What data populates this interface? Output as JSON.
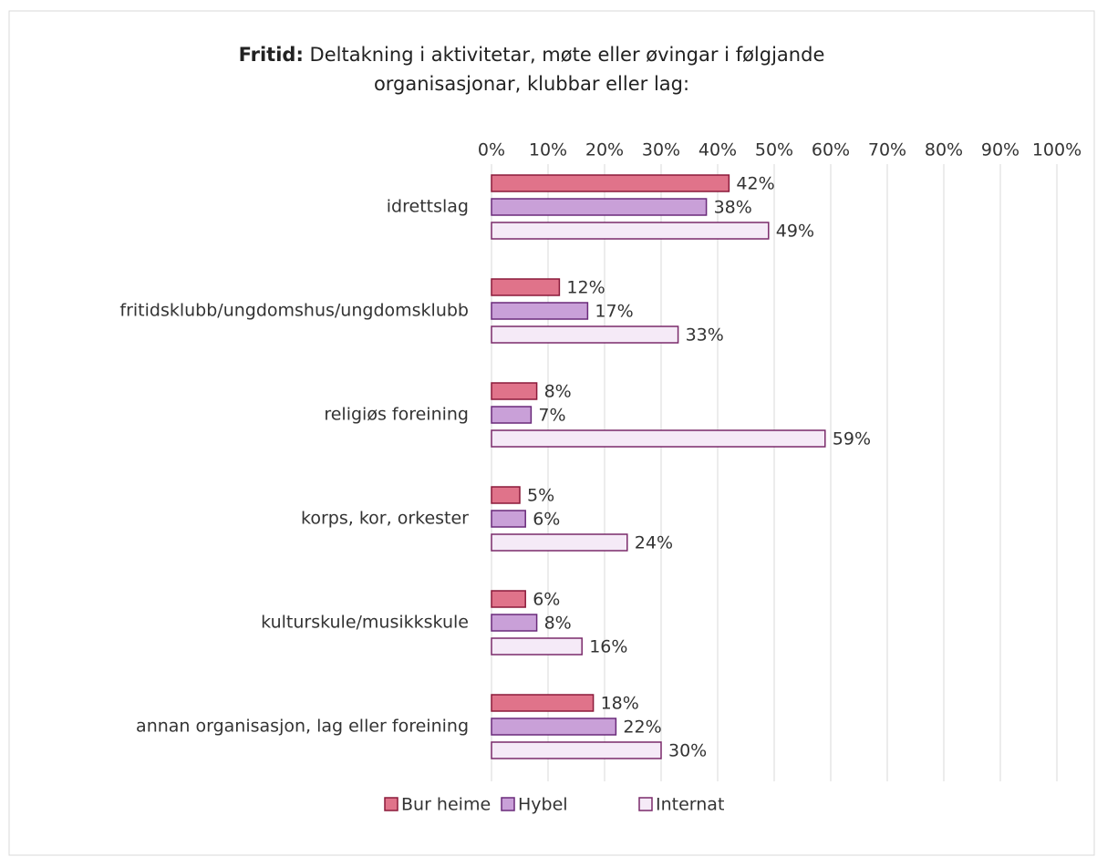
{
  "chart_data": {
    "type": "bar",
    "orientation": "horizontal",
    "title": {
      "bold": "Fritid:",
      "text": "Deltakning i aktivitetar, møte eller øvingar i følgjande organisasjonar, klubbar eller lag:"
    },
    "categories": [
      "idrettslag",
      "fritidsklubb/ungdomshus/ungdomsklubb",
      "religiøs foreining",
      "korps, kor, orkester",
      "kulturskule/musikkskule",
      "annan organisasjon, lag eller foreining"
    ],
    "series": [
      {
        "name": "Bur heime",
        "color": "#e0738a",
        "stroke": "#8b1a3a",
        "values": [
          42,
          12,
          8,
          5,
          6,
          18
        ],
        "value_labels": [
          "42%",
          "12%",
          "8%",
          "5%",
          "6%",
          "18%"
        ]
      },
      {
        "name": "Hybel",
        "color": "#c9a0d8",
        "stroke": "#6a2a7a",
        "values": [
          38,
          17,
          7,
          6,
          8,
          22
        ],
        "value_labels": [
          "38%",
          "17%",
          "7%",
          "6%",
          "8%",
          "22%"
        ]
      },
      {
        "name": "Internat",
        "color": "#f5eaf7",
        "stroke": "#7a2a6a",
        "values": [
          49,
          33,
          59,
          24,
          16,
          30
        ],
        "value_labels": [
          "49%",
          "33%",
          "59%",
          "24%",
          "16%",
          "30%"
        ]
      }
    ],
    "xlim": [
      0,
      100
    ],
    "xticks": [
      {
        "value": 0,
        "label": "0%"
      },
      {
        "value": 10,
        "label": "10%"
      },
      {
        "value": 20,
        "label": "20%"
      },
      {
        "value": 30,
        "label": "30%"
      },
      {
        "value": 40,
        "label": "40%"
      },
      {
        "value": 50,
        "label": "50%"
      },
      {
        "value": 60,
        "label": "60%"
      },
      {
        "value": 70,
        "label": "70%"
      },
      {
        "value": 80,
        "label": "80%"
      },
      {
        "value": 90,
        "label": "90%"
      },
      {
        "value": 100,
        "label": "100%"
      }
    ],
    "grid": true,
    "legend": "bottom"
  }
}
